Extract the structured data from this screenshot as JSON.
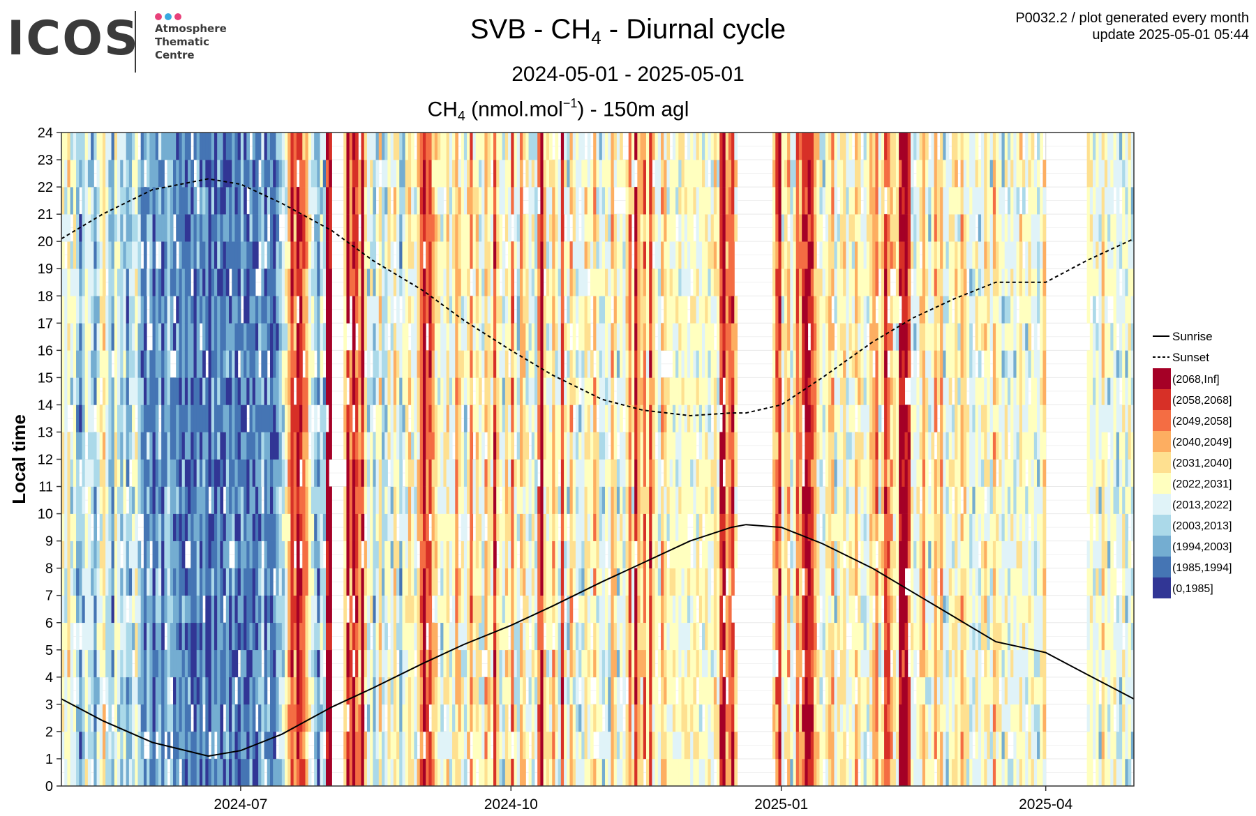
{
  "logo": {
    "word": "ICOS",
    "lines": [
      "Atmosphere",
      "Thematic",
      "Centre"
    ],
    "dot_colors": [
      "#e8417a",
      "#3aa9e0",
      "#e8417a"
    ],
    "text_color": "#3a3a3a"
  },
  "header": {
    "title_prefix": "SVB - CH",
    "title_sub": "4",
    "title_suffix": " - Diurnal cycle",
    "subtitle": "2024-05-01 - 2025-05-01",
    "unit_prefix": "CH",
    "unit_sub": "4",
    "unit_mid": " (nmol.mol",
    "unit_sup": "−1",
    "unit_suffix": ") - 150m agl",
    "note_line1": "P0032.2 / plot generated every month",
    "note_line2": "update  2025-05-01 05:44"
  },
  "chart_data": {
    "type": "heatmap",
    "x_range": [
      "2024-05-01",
      "2025-05-01"
    ],
    "x_ticks": [
      {
        "date": "2024-07-01",
        "label": "2024-07"
      },
      {
        "date": "2024-10-01",
        "label": "2024-10"
      },
      {
        "date": "2025-01-01",
        "label": "2025-01"
      },
      {
        "date": "2025-04-01",
        "label": "2025-04"
      }
    ],
    "y_ticks": [
      0,
      1,
      2,
      3,
      4,
      5,
      6,
      7,
      8,
      9,
      10,
      11,
      12,
      13,
      14,
      15,
      16,
      17,
      18,
      19,
      20,
      21,
      22,
      23,
      24
    ],
    "ylim": [
      0,
      24
    ],
    "ylabel": "Local time",
    "grid": true,
    "legend_position": "right",
    "bins": [
      {
        "label": "(2068,Inf]",
        "color": "#a50026"
      },
      {
        "label": "(2058,2068]",
        "color": "#d73027"
      },
      {
        "label": "(2049,2058]",
        "color": "#f46d43"
      },
      {
        "label": "(2040,2049]",
        "color": "#fdae61"
      },
      {
        "label": "(2031,2040]",
        "color": "#fee090"
      },
      {
        "label": "(2022,2031]",
        "color": "#ffffbf"
      },
      {
        "label": "(2013,2022]",
        "color": "#e0f3f8"
      },
      {
        "label": "(2003,2013]",
        "color": "#abd9e9"
      },
      {
        "label": "(1994,2003]",
        "color": "#74add1"
      },
      {
        "label": "(1985,1994]",
        "color": "#4575b4"
      },
      {
        "label": "(0,1985]",
        "color": "#313695"
      }
    ],
    "missing_periods": [
      [
        "2024-08-01",
        "2024-08-05"
      ],
      [
        "2024-12-17",
        "2024-12-29"
      ],
      [
        "2025-04-01",
        "2025-04-15"
      ]
    ],
    "daily_mean_bin_index": [
      5,
      6,
      4,
      6,
      5,
      7,
      8,
      7,
      5,
      6,
      7,
      8,
      6,
      5,
      4,
      6,
      7,
      8,
      5,
      6,
      7,
      6,
      8,
      7,
      6,
      5,
      7,
      8,
      9,
      7,
      8,
      9,
      8,
      7,
      9,
      8,
      7,
      8,
      9,
      8,
      9,
      8,
      9,
      8,
      9,
      9,
      8,
      9,
      8,
      9,
      10,
      8,
      9,
      8,
      9,
      9,
      8,
      9,
      8,
      9,
      9,
      8,
      9,
      9,
      8,
      9,
      9,
      8,
      7,
      9,
      8,
      9,
      9,
      8,
      7,
      6,
      5,
      3,
      1,
      2,
      0,
      1,
      2,
      3,
      5,
      6,
      7,
      8,
      6,
      7,
      0,
      0,
      0,
      0,
      0,
      1,
      4,
      0,
      2,
      0,
      1,
      3,
      0,
      4,
      6,
      5,
      7,
      6,
      4,
      7,
      6,
      5,
      6,
      4,
      5,
      7,
      6,
      5,
      4,
      5,
      6,
      4,
      2,
      0,
      2,
      1,
      3,
      4,
      5,
      6,
      5,
      4,
      6,
      5,
      3,
      4,
      5,
      6,
      4,
      2,
      5,
      4,
      5,
      6,
      3,
      4,
      5,
      1,
      4,
      5,
      6,
      4,
      5,
      2,
      5,
      6,
      3,
      4,
      5,
      6,
      5,
      6,
      2,
      0,
      4,
      5,
      5,
      3,
      5,
      6,
      1,
      5,
      6,
      3,
      5,
      6,
      6,
      6,
      4,
      5,
      5,
      3,
      5,
      6,
      6,
      5,
      6,
      3,
      4,
      6,
      5,
      6,
      4,
      2,
      5,
      0,
      3,
      4,
      2,
      5,
      1,
      4,
      5,
      6,
      3,
      4,
      5,
      5,
      5,
      5,
      5,
      5,
      5,
      5,
      5,
      5,
      5,
      5,
      5,
      5,
      5,
      5,
      4,
      5,
      1,
      0,
      3,
      2,
      1,
      4,
      5,
      6,
      3,
      2,
      5,
      4,
      3,
      1,
      0,
      3,
      5,
      6,
      4,
      2,
      1,
      5,
      4,
      3,
      6,
      5,
      2,
      3,
      1,
      0,
      0,
      1,
      3,
      4,
      5,
      6,
      5,
      4,
      3,
      6,
      5,
      5,
      4,
      6,
      5,
      5,
      3,
      4,
      5,
      6,
      5,
      4,
      3,
      2,
      5,
      4,
      1,
      2,
      3,
      4,
      5,
      0,
      0,
      0,
      1,
      5,
      6,
      5,
      4,
      3,
      5,
      6,
      5,
      3,
      4,
      3,
      6,
      6,
      5,
      5,
      4,
      5,
      3,
      4,
      5,
      6,
      6,
      5,
      6,
      5,
      4,
      5,
      6,
      3,
      4,
      5,
      6,
      5,
      6,
      5,
      6,
      5,
      4,
      5,
      6,
      5,
      5,
      6,
      6,
      5,
      4,
      6,
      6,
      5,
      6,
      5,
      6,
      6,
      6,
      6,
      6,
      5,
      6,
      6,
      5,
      5,
      5,
      6,
      5,
      6,
      4,
      5,
      6,
      5,
      5,
      6,
      6,
      5,
      6,
      5,
      6,
      6,
      5,
      6,
      5,
      6,
      6,
      6,
      6,
      6,
      6,
      5,
      6,
      6,
      5,
      6,
      2,
      4,
      6,
      5,
      6,
      7,
      5,
      4,
      5,
      6,
      5,
      6,
      5,
      6,
      5,
      6,
      5,
      4,
      6,
      5,
      5,
      6,
      3,
      6
    ],
    "sunrise": {
      "name": "Sunrise",
      "x": [
        "2024-05-01",
        "2024-05-15",
        "2024-06-01",
        "2024-06-20",
        "2024-07-01",
        "2024-07-15",
        "2024-08-01",
        "2024-08-15",
        "2024-09-01",
        "2024-09-15",
        "2024-10-01",
        "2024-10-15",
        "2024-11-01",
        "2024-11-15",
        "2024-12-01",
        "2024-12-15",
        "2024-12-20",
        "2025-01-01",
        "2025-01-15",
        "2025-02-01",
        "2025-02-15",
        "2025-03-01",
        "2025-03-15",
        "2025-04-01",
        "2025-04-15",
        "2025-05-01"
      ],
      "y": [
        3.2,
        2.4,
        1.6,
        1.1,
        1.3,
        1.9,
        2.9,
        3.6,
        4.5,
        5.2,
        5.9,
        6.6,
        7.5,
        8.2,
        9.0,
        9.5,
        9.6,
        9.5,
        8.9,
        8.0,
        7.1,
        6.2,
        5.3,
        4.9,
        4.1,
        3.2
      ]
    },
    "sunset": {
      "name": "Sunset",
      "x": [
        "2024-05-01",
        "2024-05-15",
        "2024-06-01",
        "2024-06-20",
        "2024-07-01",
        "2024-07-15",
        "2024-08-01",
        "2024-08-15",
        "2024-09-01",
        "2024-09-15",
        "2024-10-01",
        "2024-10-15",
        "2024-11-01",
        "2024-11-15",
        "2024-12-01",
        "2024-12-15",
        "2024-12-20",
        "2025-01-01",
        "2025-01-15",
        "2025-02-01",
        "2025-02-15",
        "2025-03-01",
        "2025-03-15",
        "2025-04-01",
        "2025-04-15",
        "2025-05-01"
      ],
      "y": [
        20.1,
        21.0,
        21.9,
        22.3,
        22.1,
        21.4,
        20.4,
        19.3,
        18.2,
        17.1,
        16.0,
        15.1,
        14.2,
        13.8,
        13.6,
        13.7,
        13.7,
        14.0,
        15.0,
        16.3,
        17.2,
        17.9,
        18.5,
        18.5,
        19.3,
        20.1
      ]
    }
  }
}
